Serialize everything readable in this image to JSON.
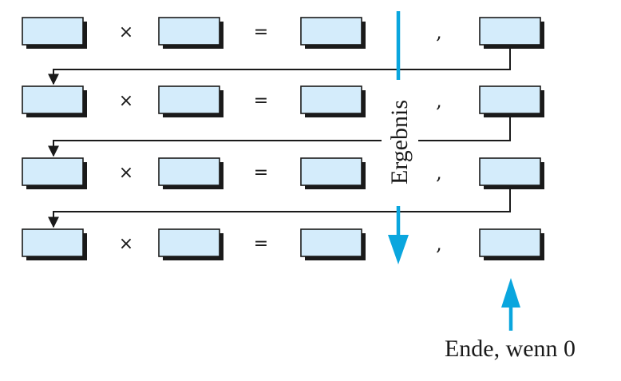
{
  "symbols": {
    "times": "×",
    "equals": "=",
    "comma": ","
  },
  "labels": {
    "result": "Ergebnis",
    "end": "Ende, wenn 0"
  },
  "rows": [
    {
      "multiplicand": "",
      "multiplier": "",
      "product": "",
      "remainder": ""
    },
    {
      "multiplicand": "",
      "multiplier": "",
      "product": "",
      "remainder": ""
    },
    {
      "multiplicand": "",
      "multiplier": "",
      "product": "",
      "remainder": ""
    },
    {
      "multiplicand": "",
      "multiplier": "",
      "product": "",
      "remainder": ""
    }
  ],
  "colors": {
    "accent": "#0aa6de",
    "box_fill": "#d4ecfb",
    "ink": "#1a1a1a"
  }
}
